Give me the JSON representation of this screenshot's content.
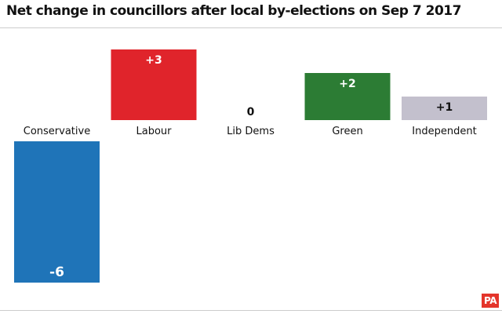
{
  "chart_data": {
    "type": "bar",
    "title": "Net change in councillors after local by-elections on Sep 7 2017",
    "xlabel": "",
    "ylabel": "",
    "categories": [
      "Conservative",
      "Labour",
      "Lib Dems",
      "Green",
      "Independent"
    ],
    "values": [
      -6,
      3,
      0,
      2,
      1
    ],
    "value_labels": [
      "-6",
      "+3",
      "0",
      "+2",
      "+1"
    ],
    "colors": [
      "#1f74b8",
      "#e0242b",
      "#999999",
      "#2c7c34",
      "#c3c0cd"
    ],
    "value_label_colors": [
      "#ffffff",
      "#ffffff",
      "#111111",
      "#ffffff",
      "#111111"
    ],
    "ylim": [
      -6,
      3
    ],
    "grid": false,
    "legend": "none"
  },
  "branding": {
    "logo_text": "PA",
    "logo_color": "#e4352b"
  }
}
